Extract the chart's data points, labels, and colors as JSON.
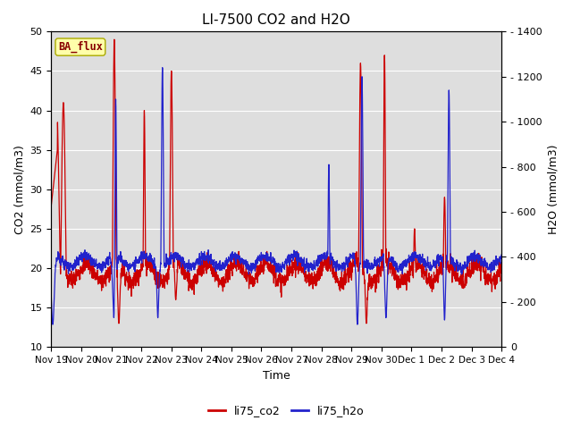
{
  "title": "LI-7500 CO2 and H2O",
  "xlabel": "Time",
  "ylabel_left": "CO2 (mmol/m3)",
  "ylabel_right": "H2O (mmol/m3)",
  "ylim_left": [
    10,
    50
  ],
  "ylim_right": [
    0,
    1400
  ],
  "yticks_left": [
    10,
    15,
    20,
    25,
    30,
    35,
    40,
    45,
    50
  ],
  "yticks_right": [
    0,
    200,
    400,
    600,
    800,
    1000,
    1200,
    1400
  ],
  "co2_color": "#cc0000",
  "h2o_color": "#2222cc",
  "background_color": "#dedede",
  "fig_background": "#ffffff",
  "legend_label_co2": "li75_co2",
  "legend_label_h2o": "li75_h2o",
  "badge_text": "BA_flux",
  "badge_facecolor": "#ffffaa",
  "badge_edgecolor": "#aaaa00",
  "badge_textcolor": "#880000",
  "x_tick_labels": [
    "Nov 19",
    "Nov 20",
    "Nov 21",
    "Nov 22",
    "Nov 23",
    "Nov 24",
    "Nov 25",
    "Nov 26",
    "Nov 27",
    "Nov 28",
    "Nov 29",
    "Nov 30",
    "Dec 1",
    "Dec 2",
    "Dec 3",
    "Dec 4"
  ],
  "grid_color": "#ffffff",
  "grid_lw": 0.8,
  "line_lw": 0.9,
  "title_fontsize": 11,
  "label_fontsize": 9,
  "tick_fontsize": 8,
  "legend_fontsize": 9
}
